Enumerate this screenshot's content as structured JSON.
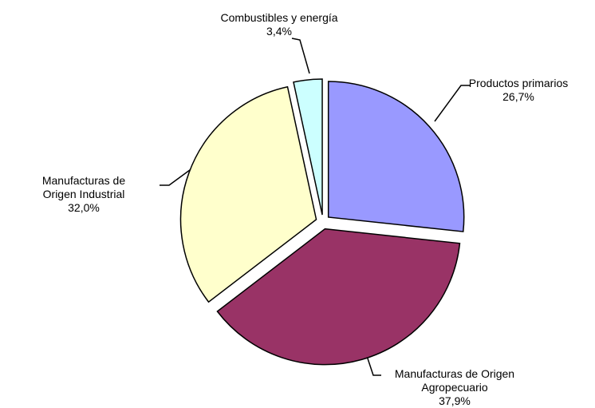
{
  "chart_data": {
    "type": "pie",
    "categories": [
      "Productos primarios",
      "Manufacturas de Origen Agropecuario",
      "Manufacturas de Origen Industrial",
      "Combustibles y energía"
    ],
    "values": [
      26.7,
      37.9,
      32.0,
      3.4
    ],
    "value_labels": [
      "26,7%",
      "37,9%",
      "32,0%",
      "3,4%"
    ],
    "colors": [
      "#9999ff",
      "#993366",
      "#ffffcc",
      "#ccffff"
    ]
  }
}
